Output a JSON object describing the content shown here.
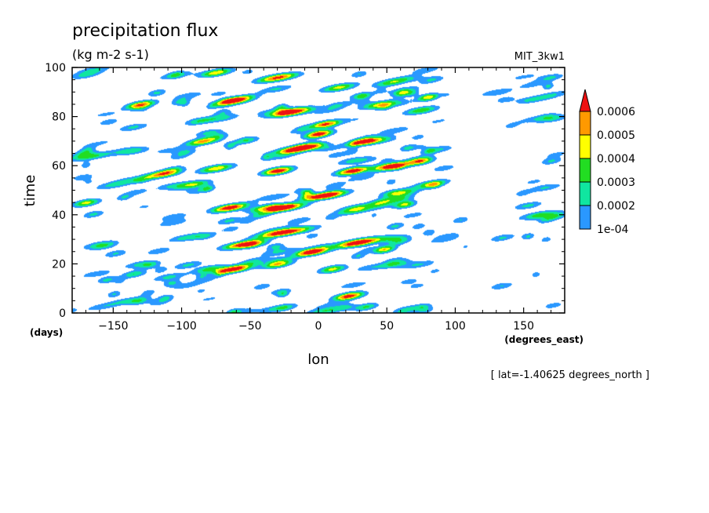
{
  "chart_data": {
    "type": "heatmap",
    "title": "precipitation flux",
    "units": "(kg m-2 s-1)",
    "dataset": "MIT_3kw1",
    "xlabel": "lon",
    "x_units": "(degrees_east)",
    "ylabel": "time",
    "y_units": "(days)",
    "footnote": "[ lat=-1.40625 degrees_north ]",
    "xlim": [
      -180,
      180
    ],
    "ylim": [
      0,
      100
    ],
    "x_ticks": [
      -150,
      -100,
      -50,
      0,
      50,
      100,
      150
    ],
    "y_ticks": [
      0,
      20,
      40,
      60,
      80,
      100
    ],
    "x_tick_labels": [
      "−150",
      "−100",
      "−50",
      "0",
      "50",
      "100",
      "150"
    ],
    "y_tick_labels": [
      "0",
      "20",
      "40",
      "60",
      "80",
      "100"
    ],
    "legend_position": "right",
    "colorbar": {
      "levels": [
        0.0001,
        0.0002,
        0.0003,
        0.0004,
        0.0005,
        0.0006
      ],
      "labels": [
        "1e-04",
        "0.0002",
        "0.0003",
        "0.0004",
        "0.0005",
        "0.0006"
      ],
      "colors": [
        "#2a98ff",
        "#10e6a0",
        "#22dd22",
        "#ffff00",
        "#ff9900",
        "#ee1111"
      ]
    },
    "features": [
      {
        "lon": -135,
        "time": 16,
        "len": 18,
        "amp": 0.0003
      },
      {
        "lon": -80,
        "time": 18,
        "len": 24,
        "amp": 0.00035
      },
      {
        "lon": -62,
        "time": 18,
        "len": 26,
        "amp": 0.00075
      },
      {
        "lon": -30,
        "time": 20,
        "len": 22,
        "amp": 0.0005
      },
      {
        "lon": 10,
        "time": 18,
        "len": 20,
        "amp": 0.00045
      },
      {
        "lon": 22,
        "time": 7,
        "len": 22,
        "amp": 0.0007
      },
      {
        "lon": 55,
        "time": 20,
        "len": 24,
        "amp": 0.0003
      },
      {
        "lon": -30,
        "time": 2,
        "len": 30,
        "amp": 0.00025
      },
      {
        "lon": -140,
        "time": 5,
        "len": 30,
        "amp": 0.00022
      },
      {
        "lon": 5,
        "time": 1,
        "len": 30,
        "amp": 0.0003
      },
      {
        "lon": -55,
        "time": 28,
        "len": 30,
        "amp": 0.0007
      },
      {
        "lon": -25,
        "time": 33,
        "len": 40,
        "amp": 0.00075
      },
      {
        "lon": -5,
        "time": 25,
        "len": 24,
        "amp": 0.0008
      },
      {
        "lon": 30,
        "time": 29,
        "len": 36,
        "amp": 0.0007
      },
      {
        "lon": 48,
        "time": 26,
        "len": 16,
        "amp": 0.0005
      },
      {
        "lon": -95,
        "time": 31,
        "len": 30,
        "amp": 0.00028
      },
      {
        "lon": -160,
        "time": 28,
        "len": 26,
        "amp": 0.00022
      },
      {
        "lon": -65,
        "time": 43,
        "len": 26,
        "amp": 0.00075
      },
      {
        "lon": -25,
        "time": 43,
        "len": 30,
        "amp": 0.00065
      },
      {
        "lon": 5,
        "time": 48,
        "len": 30,
        "amp": 0.00085
      },
      {
        "lon": 45,
        "time": 45,
        "len": 22,
        "amp": 0.0003
      },
      {
        "lon": -170,
        "time": 45,
        "len": 20,
        "amp": 0.00045
      },
      {
        "lon": 160,
        "time": 40,
        "len": 30,
        "amp": 0.00025
      },
      {
        "lon": -95,
        "time": 52,
        "len": 26,
        "amp": 0.00025
      },
      {
        "lon": -75,
        "time": 59,
        "len": 26,
        "amp": 0.0005
      },
      {
        "lon": -30,
        "time": 58,
        "len": 22,
        "amp": 0.00075
      },
      {
        "lon": 25,
        "time": 58,
        "len": 24,
        "amp": 0.00075
      },
      {
        "lon": 55,
        "time": 60,
        "len": 26,
        "amp": 0.0007
      },
      {
        "lon": 75,
        "time": 62,
        "len": 18,
        "amp": 0.0005
      },
      {
        "lon": -165,
        "time": 64,
        "len": 28,
        "amp": 0.0003
      },
      {
        "lon": 170,
        "time": 62,
        "len": 16,
        "amp": 0.00022
      },
      {
        "lon": -85,
        "time": 70,
        "len": 24,
        "amp": 0.00055
      },
      {
        "lon": -15,
        "time": 67,
        "len": 32,
        "amp": 0.00085
      },
      {
        "lon": 0,
        "time": 73,
        "len": 20,
        "amp": 0.00075
      },
      {
        "lon": 35,
        "time": 70,
        "len": 26,
        "amp": 0.00065
      },
      {
        "lon": -130,
        "time": 85,
        "len": 22,
        "amp": 0.00055
      },
      {
        "lon": -60,
        "time": 87,
        "len": 26,
        "amp": 0.00065
      },
      {
        "lon": -20,
        "time": 82,
        "len": 30,
        "amp": 0.0008
      },
      {
        "lon": 5,
        "time": 77,
        "len": 22,
        "amp": 0.00065
      },
      {
        "lon": 45,
        "time": 85,
        "len": 28,
        "amp": 0.00045
      },
      {
        "lon": 80,
        "time": 88,
        "len": 16,
        "amp": 0.0005
      },
      {
        "lon": 155,
        "time": 87,
        "len": 22,
        "amp": 0.00025
      },
      {
        "lon": -30,
        "time": 96,
        "len": 30,
        "amp": 0.00065
      },
      {
        "lon": 15,
        "time": 92,
        "len": 26,
        "amp": 0.00045
      },
      {
        "lon": -75,
        "time": 98,
        "len": 24,
        "amp": 0.0005
      },
      {
        "lon": 60,
        "time": 95,
        "len": 30,
        "amp": 0.00028
      },
      {
        "lon": 130,
        "time": 90,
        "len": 26,
        "amp": 0.0002
      }
    ]
  }
}
